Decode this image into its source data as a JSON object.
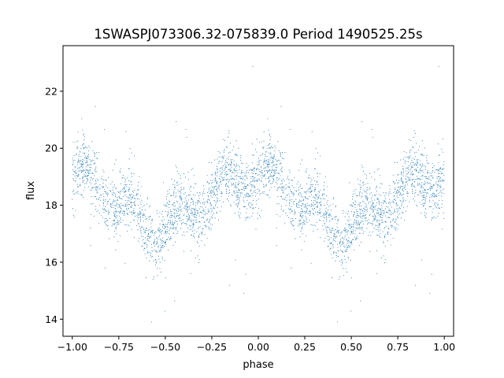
{
  "chart_data": {
    "type": "scatter",
    "title": "1SWASPJ073306.32-075839.0 Period 1490525.25s",
    "xlabel": "phase",
    "ylabel": "flux",
    "xlim": [
      -1.05,
      1.05
    ],
    "ylim": [
      13.4,
      23.6
    ],
    "xticks": [
      -1.0,
      -0.75,
      -0.5,
      -0.25,
      0.0,
      0.25,
      0.5,
      0.75,
      1.0
    ],
    "xtick_labels": [
      "−1.00",
      "−0.75",
      "−0.50",
      "−0.25",
      "0.00",
      "0.25",
      "0.50",
      "0.75",
      "1.00"
    ],
    "yticks": [
      14,
      16,
      18,
      20,
      22
    ],
    "ytick_labels": [
      "14",
      "16",
      "18",
      "20",
      "22"
    ],
    "grid": false,
    "marker_color": "#1f77b4",
    "profile": {
      "phase": [
        0.0,
        0.05,
        0.1,
        0.15,
        0.2,
        0.25,
        0.3,
        0.35,
        0.4,
        0.45,
        0.5,
        0.55,
        0.6,
        0.65,
        0.7,
        0.75,
        0.8,
        0.85,
        0.9,
        0.95,
        1.0
      ],
      "flux": [
        19.0,
        19.0,
        18.8,
        18.6,
        18.3,
        18.1,
        17.9,
        17.6,
        17.3,
        17.0,
        17.2,
        17.4,
        17.7,
        17.9,
        18.1,
        18.3,
        18.6,
        18.8,
        18.9,
        19.0,
        19.0
      ]
    }
  }
}
